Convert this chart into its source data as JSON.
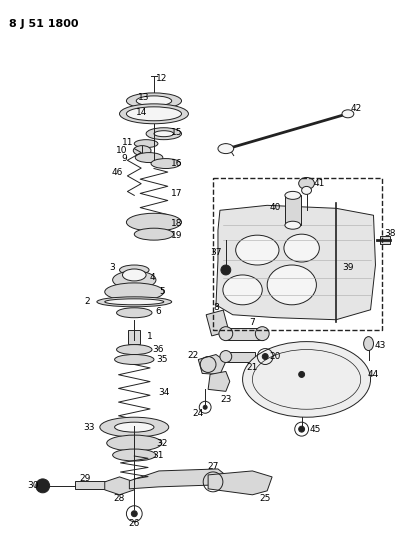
{
  "title": "8 J 51 1800",
  "background_color": "#ffffff",
  "figsize": [
    3.98,
    5.33
  ],
  "dpi": 100,
  "line_color": "#222222",
  "fill_light": "#d8d8d8",
  "fill_white": "#f5f5f5"
}
